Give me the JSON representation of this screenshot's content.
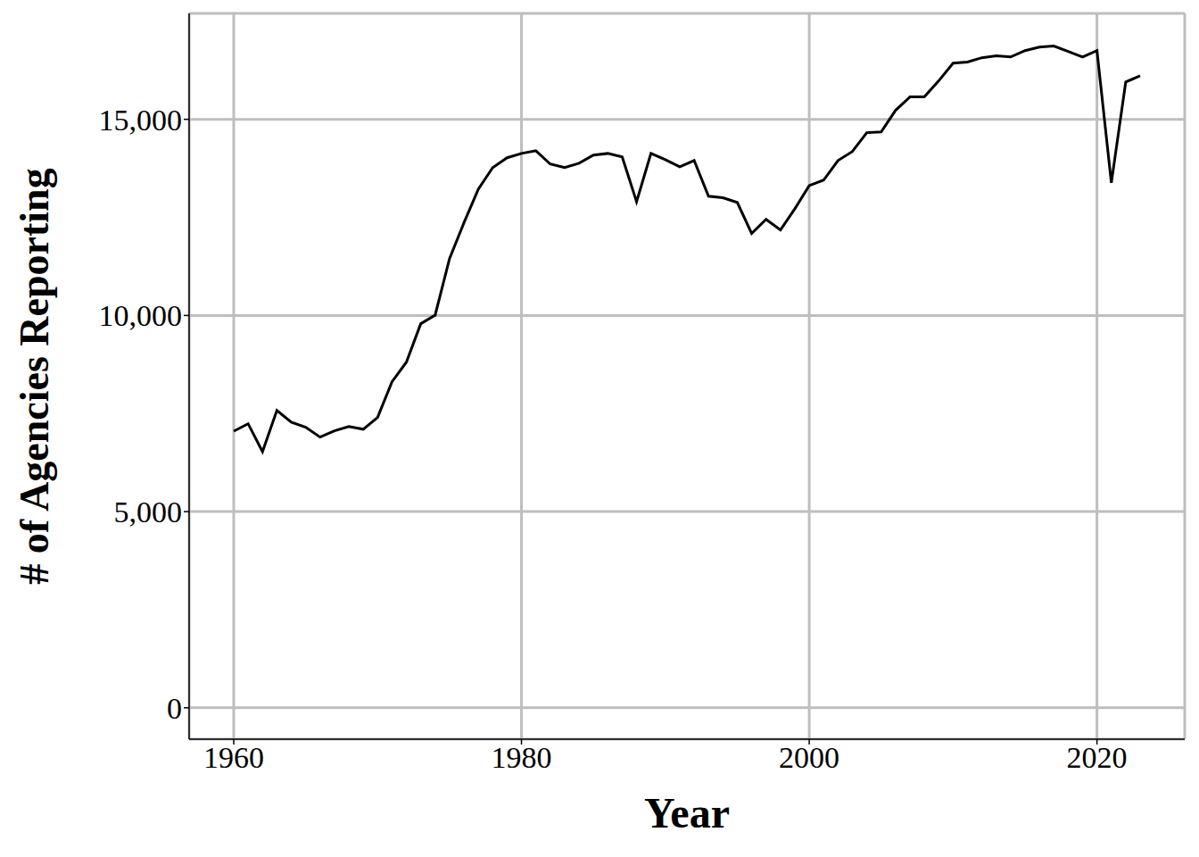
{
  "chart_data": {
    "type": "line",
    "x_label": "Year",
    "y_label": "# of Agencies Reporting",
    "x": [
      1960,
      1961,
      1962,
      1963,
      1964,
      1965,
      1966,
      1967,
      1968,
      1969,
      1970,
      1971,
      1972,
      1973,
      1974,
      1975,
      1976,
      1977,
      1978,
      1979,
      1980,
      1981,
      1982,
      1983,
      1984,
      1985,
      1986,
      1987,
      1988,
      1989,
      1990,
      1991,
      1992,
      1993,
      1994,
      1995,
      1996,
      1997,
      1998,
      1999,
      2000,
      2001,
      2002,
      2003,
      2004,
      2005,
      2006,
      2007,
      2008,
      2009,
      2010,
      2011,
      2012,
      2013,
      2014,
      2015,
      2016,
      2017,
      2018,
      2019,
      2020,
      2021,
      2022,
      2023
    ],
    "values": [
      7050,
      7240,
      6530,
      7580,
      7280,
      7150,
      6900,
      7060,
      7170,
      7100,
      7400,
      8310,
      8810,
      9790,
      10010,
      11450,
      12360,
      13220,
      13770,
      14020,
      14130,
      14200,
      13860,
      13770,
      13880,
      14090,
      14130,
      14040,
      12900,
      14130,
      13970,
      13790,
      13950,
      13040,
      13000,
      12880,
      12090,
      12450,
      12180,
      12720,
      13310,
      13450,
      13950,
      14180,
      14660,
      14680,
      15230,
      15570,
      15570,
      15980,
      16430,
      16460,
      16570,
      16620,
      16590,
      16750,
      16840,
      16870,
      16730,
      16590,
      16750,
      13380,
      15950,
      16110
    ],
    "color": "#000000",
    "xlim": [
      1956.9,
      2026.1
    ],
    "xticks": [
      1960,
      1980,
      2000,
      2020
    ],
    "ylim": [
      -800,
      17700
    ],
    "yticks": [
      0,
      {
        "value": 5000,
        "label": "5,000"
      },
      {
        "value": 10000,
        "label": "10,000"
      },
      {
        "value": 15000,
        "label": "15,000"
      }
    ],
    "grid": true
  }
}
